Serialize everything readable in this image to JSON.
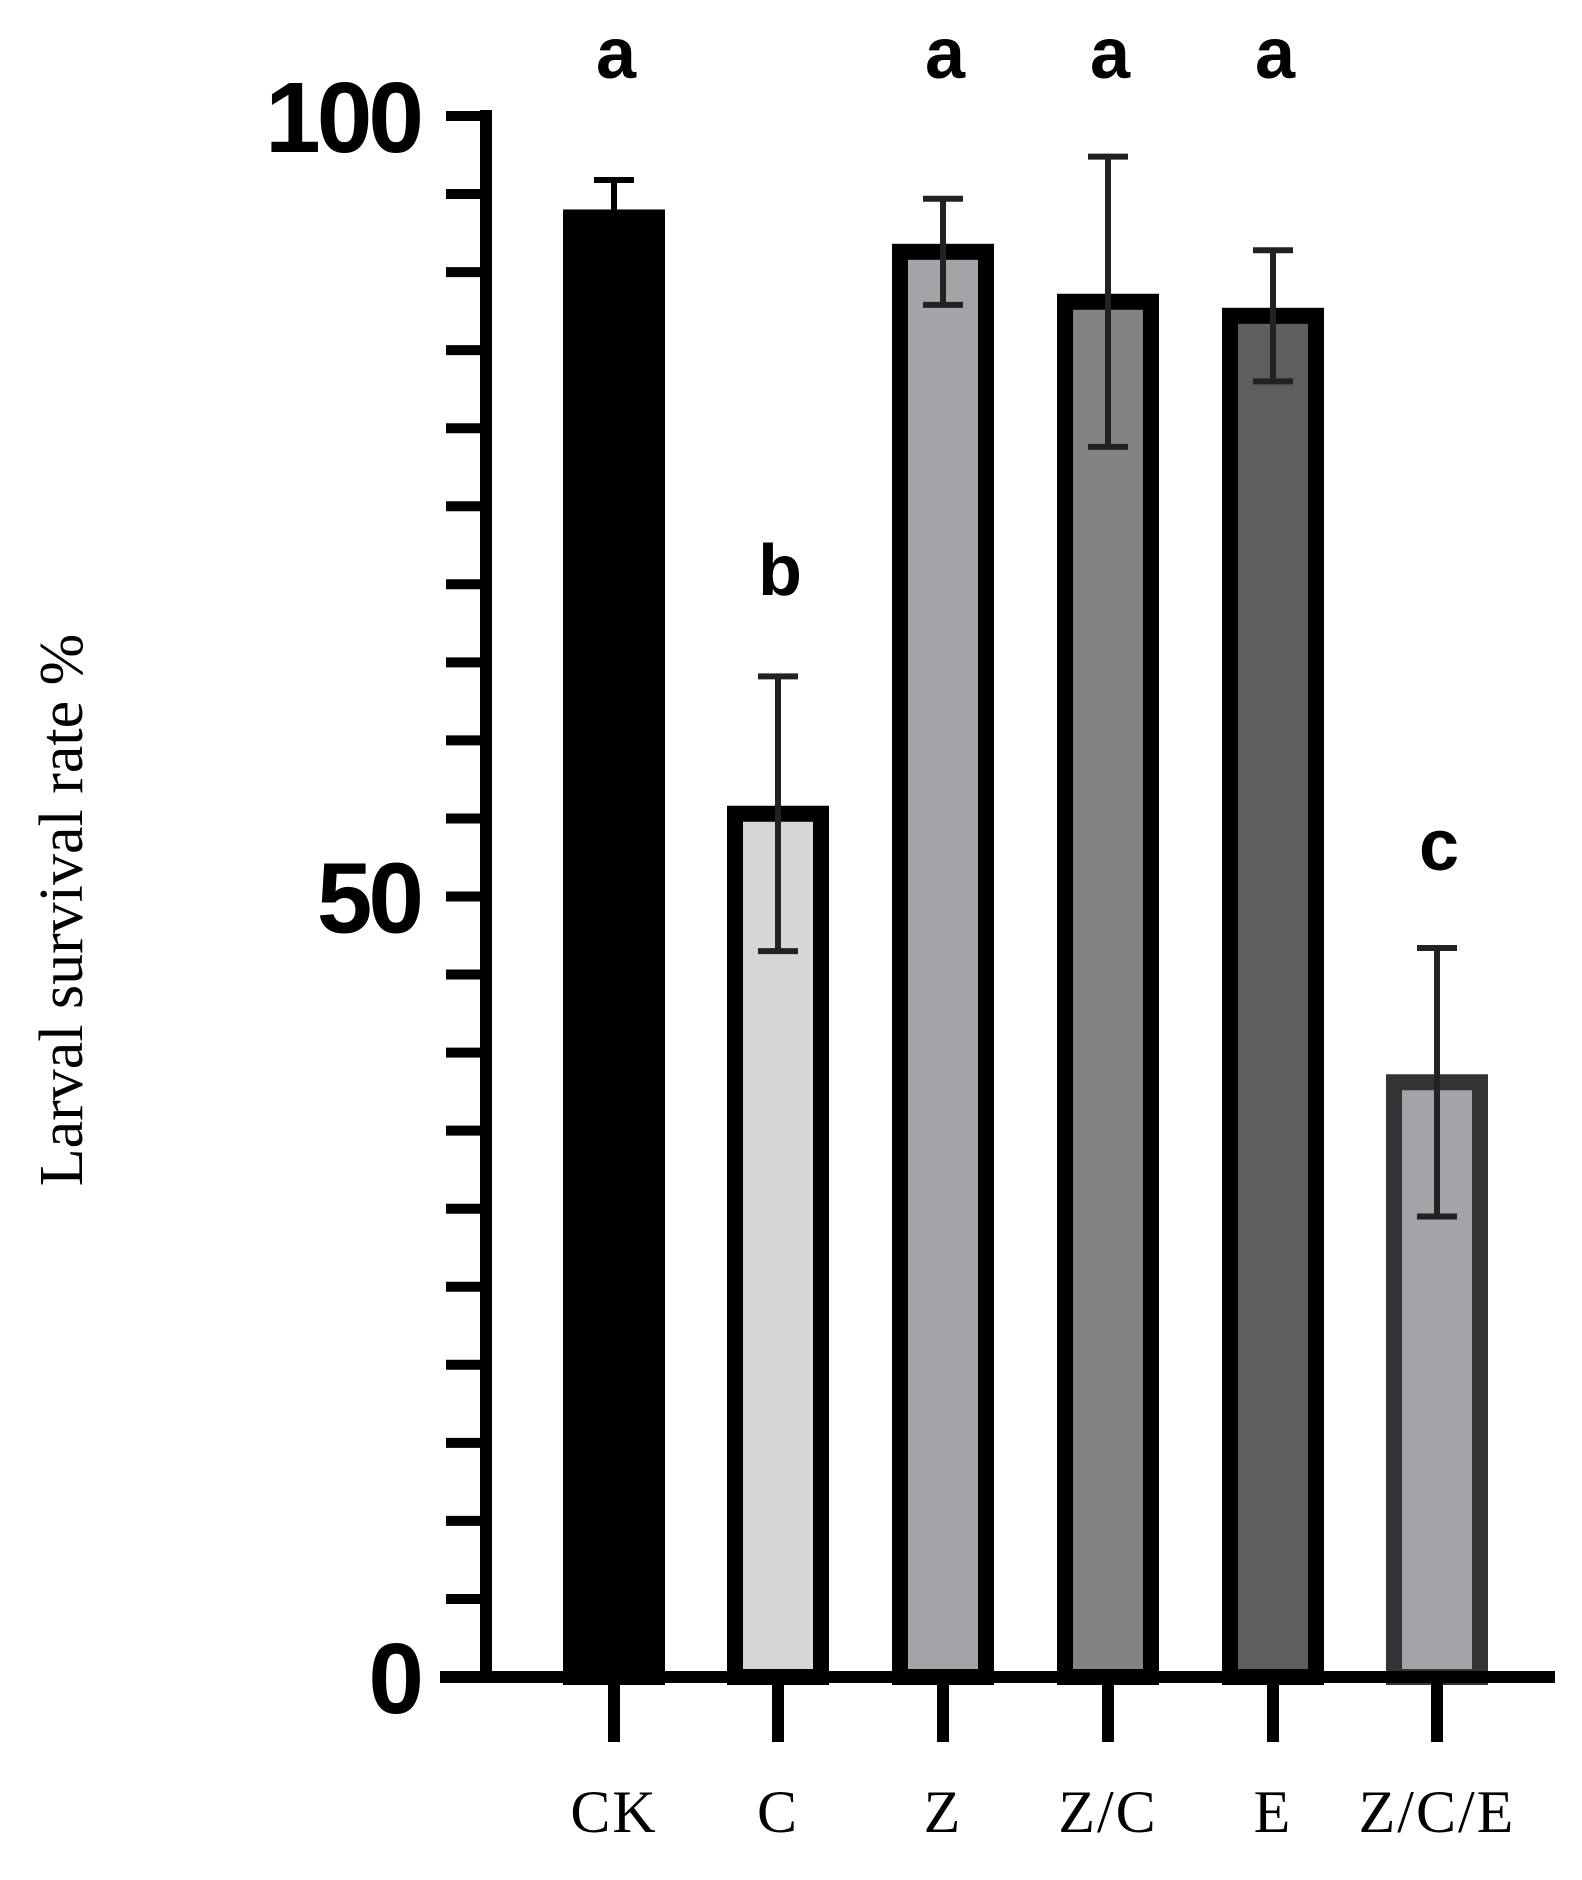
{
  "chart_data": {
    "type": "bar",
    "title": "",
    "xlabel": "",
    "ylabel": "Larval survival rate %",
    "ylim": [
      0,
      100
    ],
    "yticks_major": [
      0,
      50,
      100
    ],
    "yticks_minor_step": 5,
    "categories": [
      "CK",
      "C",
      "Z",
      "Z/C",
      "E",
      "Z/C/E"
    ],
    "values": [
      93.5,
      55.3,
      91.3,
      88.1,
      87.2,
      38.1
    ],
    "errors": [
      2.4,
      8.8,
      3.4,
      9.3,
      4.2,
      8.6
    ],
    "significance": [
      "a",
      "b",
      "a",
      "a",
      "a",
      "c"
    ],
    "fill_colors": [
      "#000000",
      "#d6d6d6",
      "#a3a3a8",
      "#838383",
      "#5e5e5e",
      "#a3a3a8"
    ],
    "edge_colors": [
      "#000000",
      "#000000",
      "#000000",
      "#000000",
      "#000000",
      "#333333"
    ],
    "grid": false
  }
}
